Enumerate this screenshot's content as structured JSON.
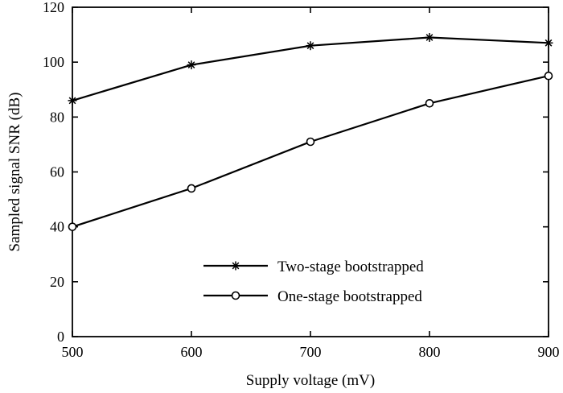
{
  "chart_data": {
    "type": "line",
    "title": "",
    "xlabel": "Supply voltage (mV)",
    "ylabel": "Sampled signal SNR (dB)",
    "xlim": [
      500,
      900
    ],
    "ylim": [
      0,
      120
    ],
    "xticks": [
      500,
      600,
      700,
      800,
      900
    ],
    "yticks": [
      0,
      20,
      40,
      60,
      80,
      100,
      120
    ],
    "grid": false,
    "legend_position": "lower-right",
    "x": [
      500,
      600,
      700,
      800,
      900
    ],
    "series": [
      {
        "name": "Two-stage bootstrapped",
        "marker": "asterisk",
        "values": [
          86,
          99,
          106,
          109,
          107
        ]
      },
      {
        "name": "One-stage bootstrapped",
        "marker": "circle",
        "values": [
          40,
          54,
          71,
          85,
          95
        ]
      }
    ]
  }
}
